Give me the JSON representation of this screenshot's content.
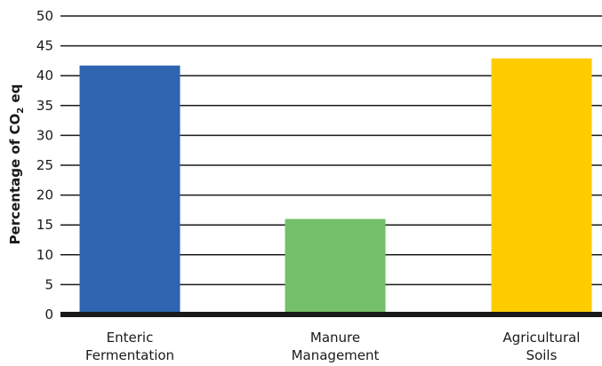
{
  "chart_data": {
    "type": "bar",
    "title": "",
    "xlabel": "",
    "ylabel": "Percentage of CO",
    "ylabel_subscript": "2",
    "ylabel_suffix": " eq",
    "ylim": [
      0,
      50
    ],
    "yticks": [
      "0",
      "5",
      "10",
      "15",
      "20",
      "25",
      "30",
      "35",
      "40",
      "45",
      "50"
    ],
    "grid": true,
    "legend": "none",
    "categories": [
      {
        "line1": "Enteric",
        "line2": "Fermentation"
      },
      {
        "line1": "Manure",
        "line2": "Management"
      },
      {
        "line1": "Agricultural",
        "line2": "Soils"
      }
    ],
    "values": [
      41.7,
      16,
      42.9
    ],
    "colors": [
      "#2e64b0",
      "#74c06a",
      "#ffcc00"
    ]
  }
}
